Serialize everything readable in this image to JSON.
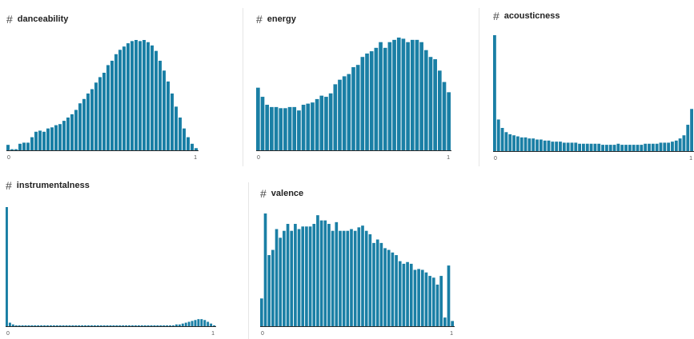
{
  "colors": {
    "bar": "#1a7fa5",
    "baseline": "#2b2b2b",
    "separator": "#e6e6e6"
  },
  "icons": {
    "header": "hash-icon"
  },
  "panels": [
    {
      "name": "danceability",
      "hash": "#"
    },
    {
      "name": "energy",
      "hash": "#"
    },
    {
      "name": "acousticness",
      "hash": "#"
    },
    {
      "name": "instrumentalness",
      "hash": "#"
    },
    {
      "name": "valence",
      "hash": "#"
    }
  ],
  "chart_data": [
    {
      "type": "bar",
      "title": "danceability",
      "x_ticks": [
        "0",
        "1"
      ],
      "xlim": [
        0,
        1
      ],
      "values": [
        5,
        1,
        1,
        6,
        7,
        7,
        12,
        17,
        18,
        17,
        20,
        21,
        23,
        24,
        27,
        30,
        33,
        37,
        43,
        47,
        52,
        56,
        62,
        67,
        71,
        78,
        82,
        88,
        92,
        95,
        98,
        100,
        101,
        100,
        101,
        99,
        96,
        91,
        82,
        73,
        63,
        52,
        40,
        30,
        20,
        12,
        6,
        2
      ]
    },
    {
      "type": "bar",
      "title": "energy",
      "x_ticks": [
        "0",
        "1"
      ],
      "xlim": [
        0,
        1
      ],
      "values": [
        55,
        47,
        40,
        38,
        38,
        37,
        37,
        38,
        38,
        35,
        40,
        41,
        42,
        45,
        48,
        47,
        50,
        58,
        62,
        65,
        67,
        73,
        75,
        82,
        85,
        87,
        90,
        95,
        90,
        95,
        97,
        99,
        98,
        95,
        97,
        97,
        95,
        88,
        82,
        80,
        70,
        60,
        51
      ]
    },
    {
      "type": "bar",
      "title": "acousticness",
      "x_ticks": [
        "0",
        "1"
      ],
      "xlim": [
        0,
        1
      ],
      "values": [
        110,
        30,
        22,
        18,
        16,
        15,
        14,
        13,
        13,
        12,
        12,
        11,
        11,
        10,
        10,
        9,
        9,
        9,
        8,
        8,
        8,
        8,
        7,
        7,
        7,
        7,
        7,
        7,
        6,
        6,
        6,
        6,
        7,
        6,
        6,
        6,
        6,
        6,
        6,
        7,
        7,
        7,
        7,
        8,
        8,
        8,
        9,
        10,
        12,
        15,
        25,
        40
      ]
    },
    {
      "type": "bar",
      "title": "instrumentalness",
      "x_ticks": [
        "0",
        "1"
      ],
      "xlim": [
        0,
        1
      ],
      "values": [
        135,
        4,
        2,
        1,
        1,
        1,
        1,
        1,
        1,
        1,
        1,
        1,
        1,
        1,
        1,
        1,
        1,
        1,
        1,
        1,
        1,
        1,
        1,
        1,
        1,
        1,
        1,
        1,
        1,
        1,
        1,
        1,
        1,
        1,
        1,
        1,
        1,
        1,
        1,
        1,
        1,
        1,
        1,
        1,
        1,
        1,
        1,
        1,
        1,
        1,
        1,
        1,
        1,
        1,
        2,
        2,
        3,
        4,
        5,
        6,
        7,
        8,
        8,
        7,
        5,
        3,
        1
      ]
    },
    {
      "type": "bar",
      "title": "valence",
      "x_ticks": [
        "0",
        "1"
      ],
      "xlim": [
        0,
        1
      ],
      "values": [
        32,
        130,
        82,
        88,
        112,
        102,
        110,
        118,
        110,
        118,
        112,
        115,
        115,
        115,
        118,
        128,
        122,
        122,
        118,
        110,
        120,
        110,
        110,
        110,
        112,
        110,
        114,
        116,
        110,
        106,
        96,
        100,
        96,
        90,
        88,
        85,
        82,
        75,
        72,
        74,
        72,
        65,
        66,
        65,
        62,
        58,
        56,
        48,
        58,
        10,
        70,
        6
      ]
    }
  ]
}
